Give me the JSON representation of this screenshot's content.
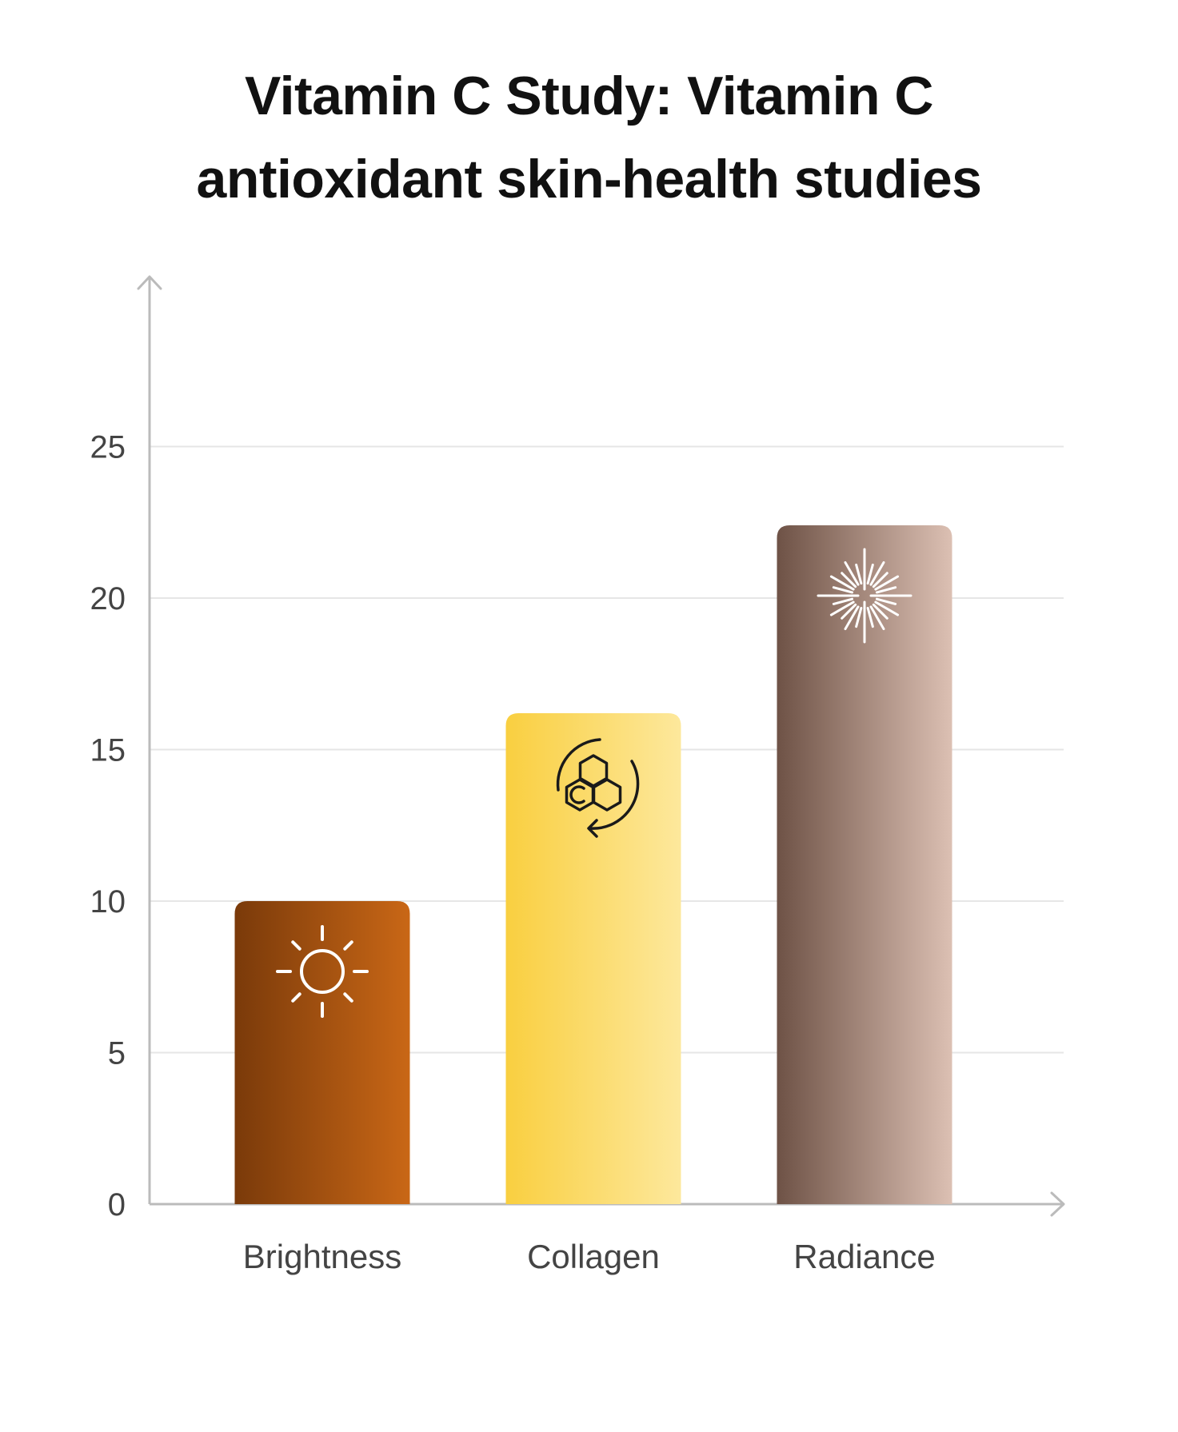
{
  "title_lines": [
    "Vitamin C Study: Vitamin C",
    "antioxidant skin-health studies"
  ],
  "chart_data": {
    "type": "bar",
    "title": "Vitamin C Study: Vitamin C antioxidant skin-health studies",
    "xlabel": "",
    "ylabel": "",
    "categories": [
      "Brightness",
      "Collagen",
      "Radiance"
    ],
    "values": [
      10.0,
      16.2,
      22.4
    ],
    "ylim": [
      0,
      28
    ],
    "yticks": [
      0,
      5,
      10,
      15,
      20,
      25
    ],
    "grid": true,
    "legend": "none"
  },
  "bars": [
    {
      "icon": "sun-icon",
      "icon_color": "#ffffff",
      "gradient": [
        "#7a3a0a",
        "#c96716"
      ]
    },
    {
      "icon": "molecule-c-cycle-icon",
      "icon_color": "#1a1a1a",
      "gradient": [
        "#f9cf40",
        "#fde89c"
      ]
    },
    {
      "icon": "sparkle-burst-icon",
      "icon_color": "#ffffff",
      "gradient": [
        "#6e5246",
        "#dcc0b3"
      ]
    }
  ],
  "colors": {
    "grid": "#e6e6e6",
    "axis": "#bbbbbb",
    "text": "#444444",
    "title": "#111111"
  }
}
